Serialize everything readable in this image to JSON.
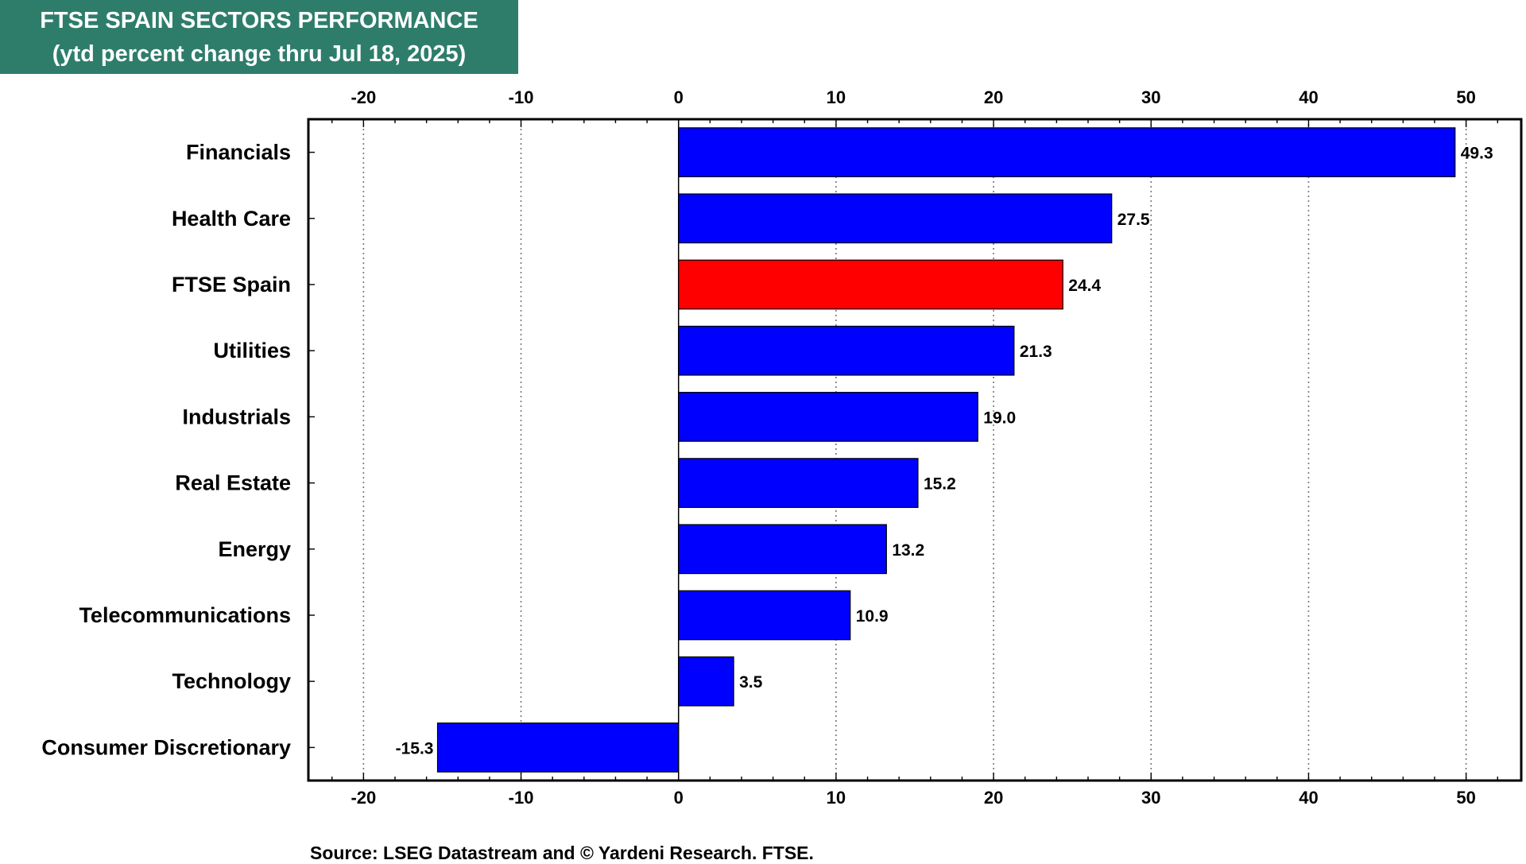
{
  "header": {
    "title_line1": "FTSE SPAIN SECTORS PERFORMANCE",
    "title_line2": "(ytd percent change thru Jul 18, 2025)"
  },
  "footer": {
    "source": "Source: LSEG Datastream and © Yardeni Research. FTSE."
  },
  "colors": {
    "title_bg": "#2e7d6b",
    "bar": "#0000ff",
    "highlight_bar": "#ff0000"
  },
  "chart_data": {
    "type": "bar",
    "orientation": "horizontal",
    "categories": [
      "Financials",
      "Health Care",
      "FTSE Spain",
      "Utilities",
      "Industrials",
      "Real Estate",
      "Energy",
      "Telecommunications",
      "Technology",
      "Consumer Discretionary"
    ],
    "values": [
      49.3,
      27.5,
      24.4,
      21.3,
      19.0,
      15.2,
      13.2,
      10.9,
      3.5,
      -15.3
    ],
    "value_labels": [
      "49.3",
      "27.5",
      "24.4",
      "21.3",
      "19.0",
      "15.2",
      "13.2",
      "10.9",
      "3.5",
      "-15.3"
    ],
    "highlight_category": "FTSE Spain",
    "xlim": [
      -23.5,
      53.5
    ],
    "xticks": [
      -20,
      -10,
      0,
      10,
      20,
      30,
      40,
      50
    ],
    "xtick_labels": [
      "-20",
      "-10",
      "0",
      "10",
      "20",
      "30",
      "40",
      "50"
    ],
    "xaxis_position": "top and bottom",
    "grid": "vertical dotted",
    "legend": "none"
  }
}
